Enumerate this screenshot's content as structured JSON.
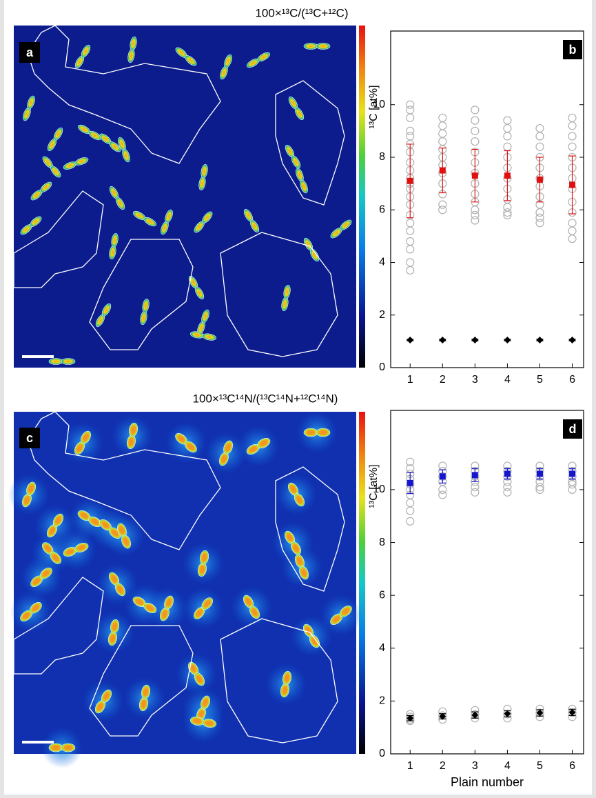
{
  "panels": [
    {
      "label": "a",
      "title": "100×¹³C/(¹³C+¹²C)"
    },
    {
      "label": "c",
      "title": "100×¹³C¹⁴N/(¹³C¹⁴N+¹²C¹⁴N)"
    }
  ],
  "chart_data": [
    {
      "type": "scatter",
      "panel_label": "b",
      "ylabel": "¹³C [at%]",
      "x": [
        1,
        2,
        3,
        4,
        5,
        6
      ],
      "xlim": [
        0.4,
        6.35
      ],
      "xticks": [
        1,
        2,
        3,
        4,
        5,
        6
      ],
      "ylim": [
        0,
        12.8
      ],
      "yticks": [
        0,
        2,
        4,
        6,
        8,
        10
      ],
      "series": [
        {
          "color": "#b0b0b0",
          "x": [
            1,
            1,
            1,
            1,
            1,
            1,
            1,
            1,
            1,
            1,
            1,
            1,
            1,
            1,
            1,
            1,
            1,
            1,
            1,
            1,
            1,
            2,
            2,
            2,
            2,
            2,
            2,
            2,
            2,
            2,
            2,
            2,
            2,
            3,
            3,
            3,
            3,
            3,
            3,
            3,
            3,
            3,
            3,
            3,
            3,
            3,
            4,
            4,
            4,
            4,
            4,
            4,
            4,
            4,
            4,
            4,
            4,
            4,
            5,
            5,
            5,
            5,
            5,
            5,
            5,
            5,
            5,
            5,
            5,
            5,
            6,
            6,
            6,
            6,
            6,
            6,
            6,
            6,
            6,
            6,
            6,
            6,
            6
          ],
          "values": [
            10.0,
            9.8,
            9.5,
            9.0,
            8.8,
            8.5,
            8.2,
            7.8,
            7.5,
            7.2,
            7.0,
            6.8,
            6.5,
            6.2,
            5.8,
            5.5,
            5.2,
            4.8,
            4.5,
            4.0,
            3.7,
            9.5,
            9.2,
            8.9,
            8.6,
            8.3,
            8.0,
            7.7,
            7.4,
            7.0,
            6.6,
            6.2,
            6.0,
            9.8,
            9.4,
            9.0,
            8.6,
            8.2,
            7.8,
            7.4,
            7.0,
            6.6,
            6.3,
            6.0,
            5.8,
            5.6,
            9.4,
            9.1,
            8.8,
            8.4,
            8.0,
            7.6,
            7.2,
            6.8,
            6.4,
            6.1,
            5.9,
            5.8,
            9.1,
            8.8,
            8.4,
            8.0,
            7.6,
            7.2,
            6.9,
            6.5,
            6.2,
            5.9,
            5.7,
            5.5,
            9.5,
            9.2,
            8.8,
            8.4,
            8.0,
            7.6,
            7.2,
            6.8,
            6.3,
            5.9,
            5.5,
            5.2,
            4.9
          ]
        },
        {
          "color": "#e01010",
          "marker": "square",
          "values": [
            7.1,
            7.5,
            7.3,
            7.3,
            7.15,
            6.95
          ],
          "errors": [
            1.4,
            0.85,
            1.0,
            0.95,
            0.85,
            1.1
          ]
        },
        {
          "color": "#000000",
          "marker": "diamond",
          "values": [
            1.05,
            1.05,
            1.05,
            1.05,
            1.05,
            1.05
          ],
          "errors": [
            0.03,
            0.03,
            0.03,
            0.03,
            0.03,
            0.03
          ]
        }
      ]
    },
    {
      "type": "scatter",
      "panel_label": "d",
      "ylabel": "¹³C [at%]",
      "xlabel": "Plain number",
      "x": [
        1,
        2,
        3,
        4,
        5,
        6
      ],
      "xlim": [
        0.4,
        6.35
      ],
      "xticks": [
        1,
        2,
        3,
        4,
        5,
        6
      ],
      "ylim": [
        0,
        13
      ],
      "yticks": [
        0,
        2,
        4,
        6,
        8,
        10
      ],
      "series": [
        {
          "color": "#b0b0b0",
          "x": [
            1,
            1,
            1,
            1,
            1,
            1,
            1,
            1,
            1,
            1,
            1,
            1,
            1,
            1,
            2,
            2,
            2,
            2,
            2,
            2,
            2,
            2,
            2,
            3,
            3,
            3,
            3,
            3,
            3,
            3,
            3,
            3,
            4,
            4,
            4,
            4,
            4,
            4,
            4,
            4,
            4,
            5,
            5,
            5,
            5,
            5,
            5,
            5,
            5,
            5,
            6,
            6,
            6,
            6,
            6,
            6,
            6,
            6,
            6
          ],
          "values": [
            11.05,
            10.8,
            10.6,
            10.4,
            10.2,
            10.0,
            9.8,
            9.5,
            9.2,
            8.8,
            1.5,
            1.4,
            1.3,
            1.25,
            10.9,
            10.7,
            10.5,
            10.3,
            10.0,
            9.8,
            1.6,
            1.45,
            1.3,
            10.9,
            10.7,
            10.5,
            10.3,
            10.1,
            9.9,
            1.65,
            1.5,
            1.35,
            10.9,
            10.7,
            10.5,
            10.3,
            10.1,
            9.9,
            1.7,
            1.5,
            1.35,
            10.9,
            10.7,
            10.5,
            10.3,
            10.1,
            10.0,
            1.7,
            1.55,
            1.4,
            10.9,
            10.7,
            10.5,
            10.3,
            10.2,
            10.0,
            1.7,
            1.55,
            1.4
          ]
        },
        {
          "color": "#1515d0",
          "marker": "square",
          "values": [
            10.25,
            10.5,
            10.55,
            10.6,
            10.6,
            10.6
          ],
          "errors": [
            0.4,
            0.25,
            0.25,
            0.2,
            0.2,
            0.2
          ]
        },
        {
          "color": "#000000",
          "marker": "diamond",
          "values": [
            1.35,
            1.42,
            1.47,
            1.52,
            1.55,
            1.57
          ],
          "errors": [
            0.1,
            0.1,
            0.12,
            0.12,
            0.12,
            0.12
          ]
        }
      ]
    }
  ]
}
